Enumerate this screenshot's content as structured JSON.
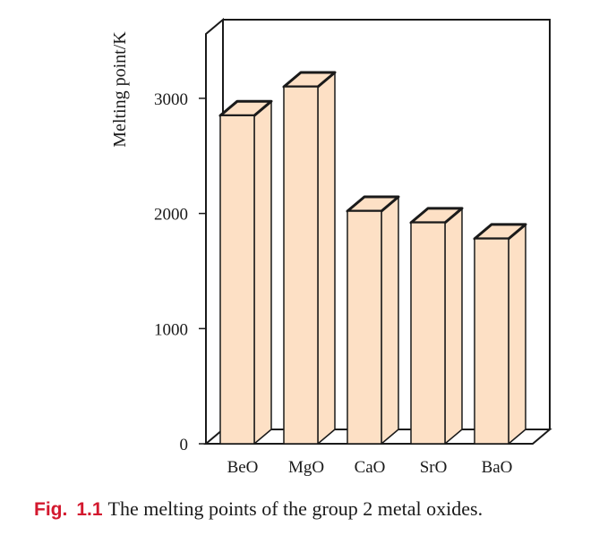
{
  "chart_data": {
    "type": "bar",
    "categories": [
      "BeO",
      "MgO",
      "CaO",
      "SrO",
      "BaO"
    ],
    "values": [
      2850,
      3100,
      2020,
      1920,
      1780
    ],
    "title": "",
    "xlabel": "",
    "ylabel": "Melting point/K",
    "ylim": [
      0,
      3000
    ],
    "yticks": [
      0,
      1000,
      2000,
      3000
    ],
    "grid": false,
    "bar_color": "#fde0c5",
    "edge_color": "#1a1a1a",
    "style": "3d-bars"
  },
  "caption": {
    "fig_label": "Fig.",
    "fig_number": "1.1",
    "text": "The melting points of the group 2 metal oxides."
  }
}
